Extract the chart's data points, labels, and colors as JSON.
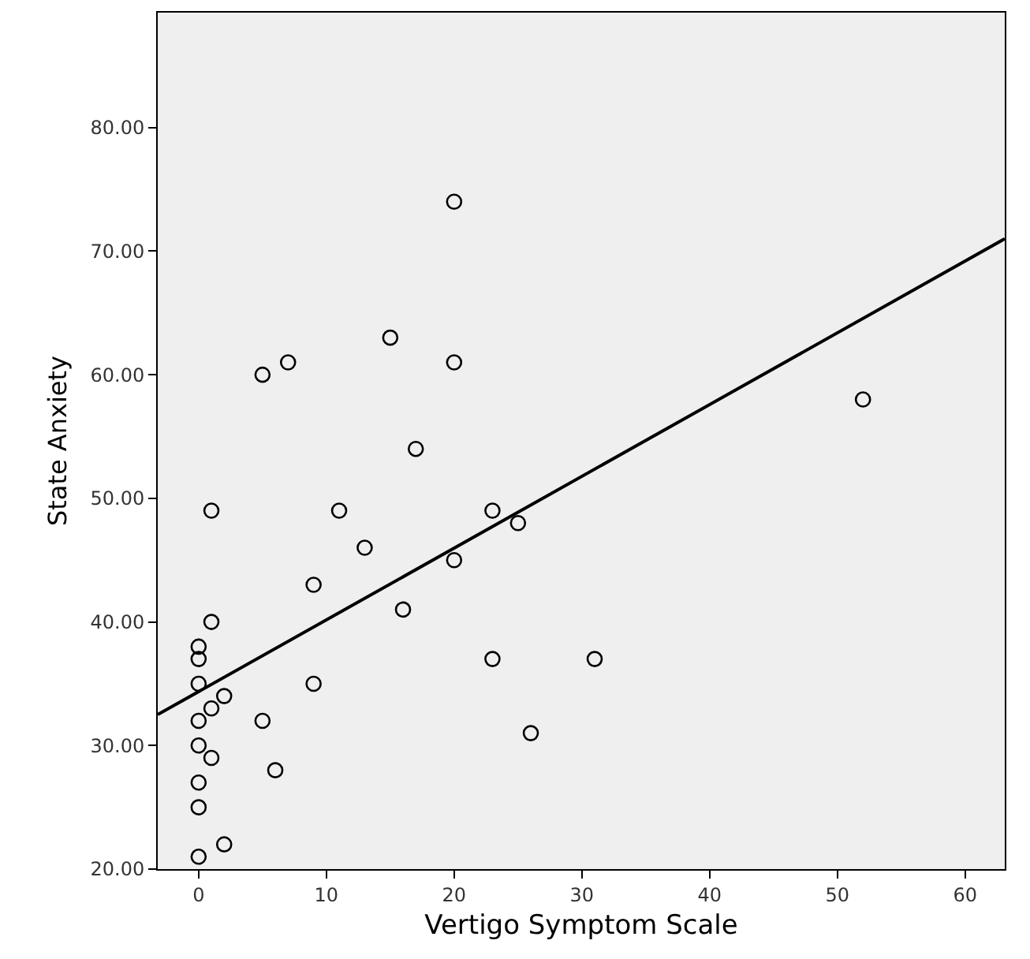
{
  "chart_data": {
    "type": "scatter",
    "xlabel": "Vertigo Symptom Scale",
    "ylabel": "State Anxiety",
    "x": [
      0,
      0,
      0,
      0,
      0,
      0,
      0,
      0,
      1,
      1,
      1,
      1,
      2,
      2,
      5,
      5,
      6,
      7,
      9,
      9,
      11,
      13,
      15,
      16,
      17,
      20,
      20,
      20,
      23,
      23,
      25,
      26,
      31,
      52
    ],
    "series": [
      {
        "color": "#000000",
        "marker": "circle",
        "values": [
          21,
          25,
          27,
          30,
          32,
          35,
          37,
          38,
          29,
          33,
          40,
          49,
          22,
          34,
          32,
          60,
          28,
          61,
          35,
          43,
          49,
          46,
          63,
          41,
          54,
          74,
          61,
          45,
          49,
          37,
          48,
          31,
          37,
          58
        ]
      },
      {
        "type": "line",
        "color": "#000000",
        "line_style": "solid",
        "x": [
          -3.2,
          63.1
        ],
        "values": [
          32.5,
          71.0
        ]
      }
    ],
    "xlim": [
      -3.2,
      63.1
    ],
    "xticks": [
      0,
      10,
      20,
      30,
      40,
      50,
      60
    ],
    "ylim": [
      20,
      89.3
    ],
    "yticks": [
      {
        "value": 20,
        "label": "20.00"
      },
      {
        "value": 30,
        "label": "30.00"
      },
      {
        "value": 40,
        "label": "40.00"
      },
      {
        "value": 50,
        "label": "50.00"
      },
      {
        "value": 60,
        "label": "60.00"
      },
      {
        "value": 70,
        "label": "70.00"
      },
      {
        "value": 80,
        "label": "80.00"
      }
    ],
    "grid": false,
    "legend": false
  }
}
